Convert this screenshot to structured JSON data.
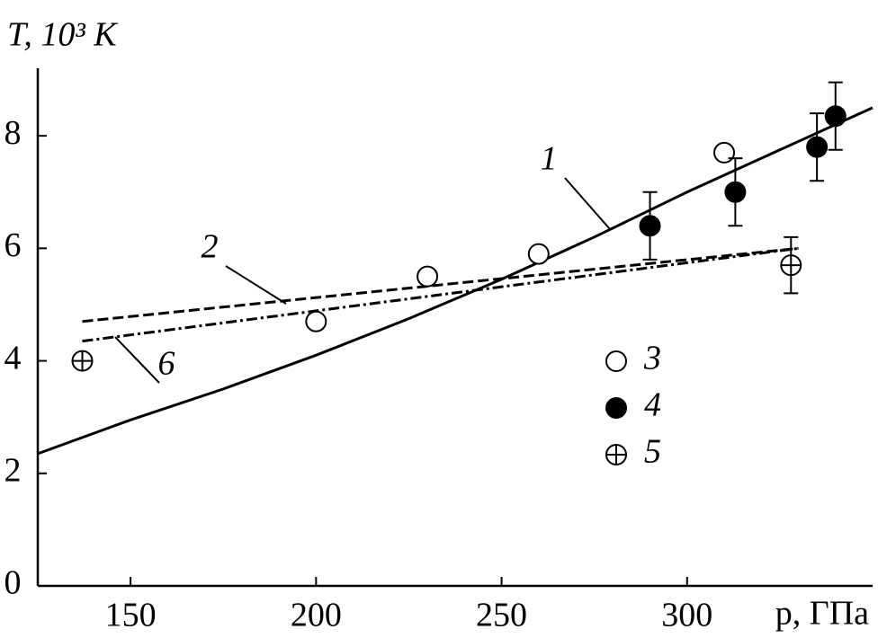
{
  "chart_data": {
    "type": "line",
    "x_label": "p, ГПа",
    "y_label": "T, 10³ K",
    "xlim": [
      125,
      350
    ],
    "ylim": [
      0,
      9.2
    ],
    "xticks": [
      150,
      200,
      250,
      300
    ],
    "yticks": [
      0,
      2,
      4,
      6,
      8
    ],
    "grid": false,
    "series": [
      {
        "name": "1",
        "type": "line",
        "dash": "solid",
        "color": "#000000",
        "x": [
          125,
          150,
          175,
          200,
          225,
          250,
          275,
          300,
          325,
          350
        ],
        "values": [
          2.35,
          2.95,
          3.5,
          4.1,
          4.75,
          5.45,
          6.2,
          7.0,
          7.75,
          8.5
        ]
      },
      {
        "name": "2",
        "type": "line",
        "dash": "dashed",
        "color": "#000000",
        "x": [
          137,
          330
        ],
        "values": [
          4.7,
          6.0
        ]
      },
      {
        "name": "6",
        "type": "line",
        "dash": "dashdot",
        "color": "#000000",
        "x": [
          137,
          330
        ],
        "values": [
          4.35,
          6.0
        ]
      },
      {
        "name": "3",
        "type": "scatter",
        "marker": "open",
        "color": "#000000",
        "x": [
          200,
          230,
          260,
          310
        ],
        "values": [
          4.7,
          5.5,
          5.9,
          7.7
        ]
      },
      {
        "name": "4",
        "type": "scatter",
        "marker": "filled",
        "color": "#000000",
        "x": [
          290,
          313,
          335,
          340
        ],
        "values": [
          6.4,
          7.0,
          7.8,
          8.35
        ],
        "errors": [
          0.6,
          0.6,
          0.6,
          0.6
        ]
      },
      {
        "name": "5",
        "type": "scatter",
        "marker": "crossed",
        "color": "#000000",
        "x": [
          137,
          328
        ],
        "values": [
          4.0,
          5.7
        ],
        "errors": [
          null,
          0.5
        ]
      }
    ]
  }
}
